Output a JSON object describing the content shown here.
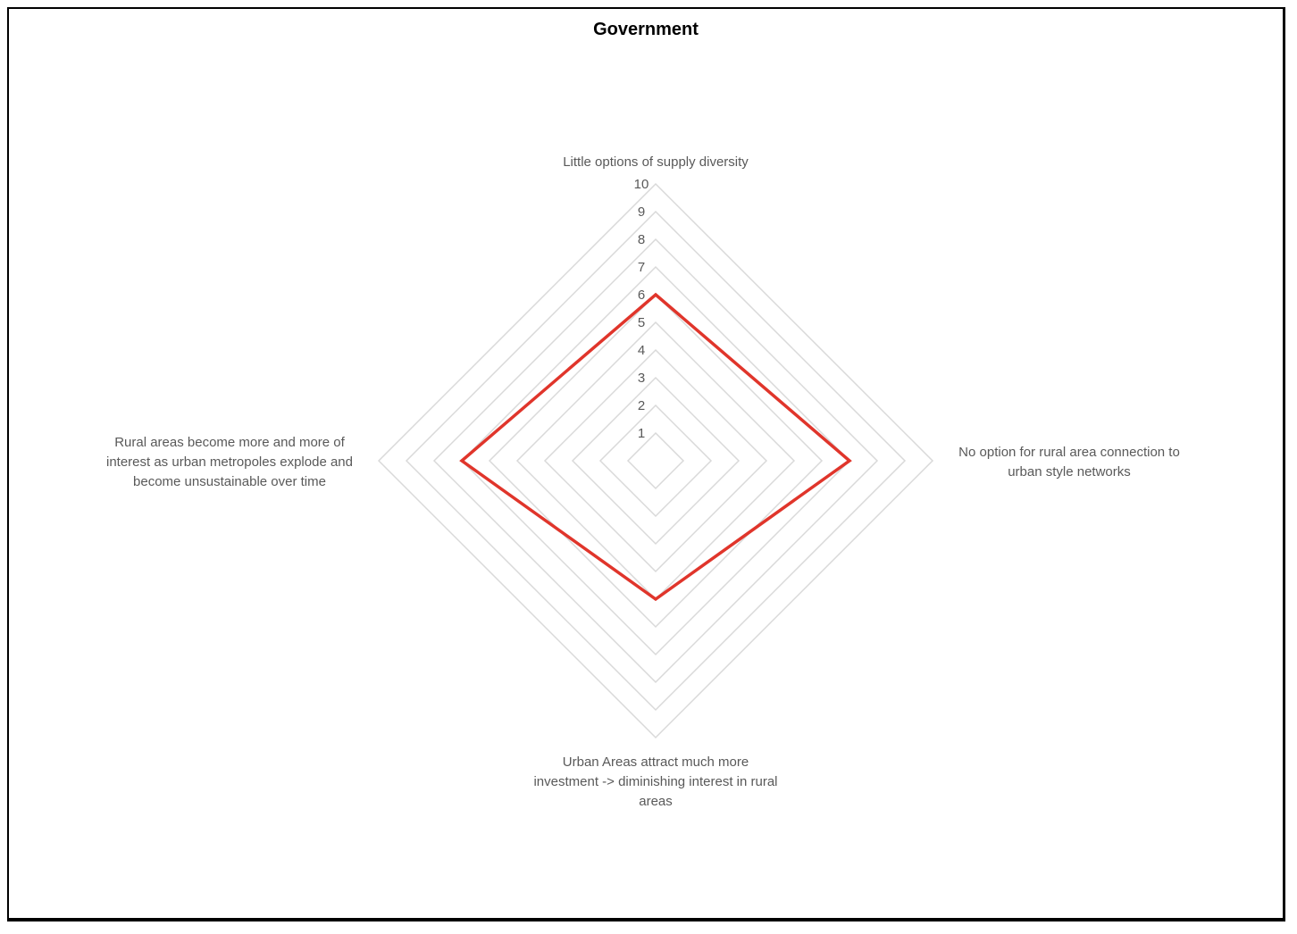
{
  "chart_data": {
    "type": "radar",
    "title": "Government",
    "axes": [
      [
        "Little options of supply diversity"
      ],
      [
        "No option for rural area connection to",
        "urban style networks"
      ],
      [
        "Urban Areas attract much more",
        "investment -> diminishing interest in rural",
        "areas"
      ],
      [
        "Rural areas become more and more of",
        "interest as urban metropoles explode and",
        "become unsustainable over time"
      ]
    ],
    "series": [
      {
        "values": [
          6,
          7,
          5,
          7
        ],
        "color": "#e0352b"
      }
    ],
    "rlim": [
      0,
      10
    ],
    "ticks": [
      "1",
      "2",
      "3",
      "4",
      "5",
      "6",
      "7",
      "8",
      "9",
      "10"
    ],
    "grid": true,
    "legend": "none"
  }
}
